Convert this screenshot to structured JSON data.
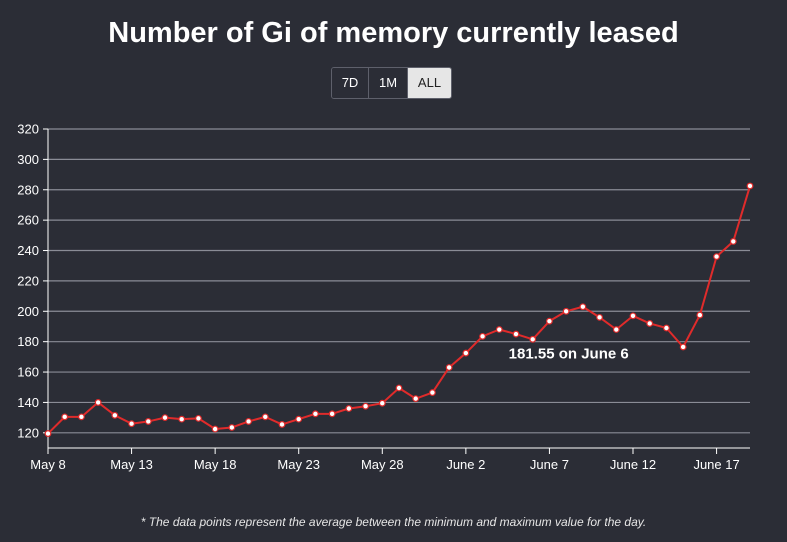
{
  "title": "Number of Gi of memory currently leased",
  "range_buttons": [
    {
      "label": "7D",
      "active": false
    },
    {
      "label": "1M",
      "active": false
    },
    {
      "label": "ALL",
      "active": true
    }
  ],
  "footnote": "* The data points represent the average between the minimum and maximum value for the day.",
  "hover_label": "181.55 on June 6",
  "colors": {
    "background": "#2b2d36",
    "line": "#e02b2b",
    "gridline": "#8a8c96",
    "text": "#ffffff"
  },
  "chart_data": {
    "type": "line",
    "title": "Number of Gi of memory currently leased",
    "xlabel": "",
    "ylabel": "",
    "ylim": [
      110,
      320
    ],
    "yticks": [
      120,
      140,
      160,
      180,
      200,
      220,
      240,
      260,
      280,
      300,
      320
    ],
    "xticks": [
      "May 8",
      "May 13",
      "May 18",
      "May 23",
      "May 28",
      "June 2",
      "June 7",
      "June 12",
      "June 17"
    ],
    "grid": true,
    "x": [
      "May 8",
      "May 9",
      "May 10",
      "May 11",
      "May 12",
      "May 13",
      "May 14",
      "May 15",
      "May 16",
      "May 17",
      "May 18",
      "May 19",
      "May 20",
      "May 21",
      "May 22",
      "May 23",
      "May 24",
      "May 25",
      "May 26",
      "May 27",
      "May 28",
      "May 29",
      "May 30",
      "May 31",
      "June 1",
      "June 2",
      "June 3",
      "June 4",
      "June 5",
      "June 6",
      "June 7",
      "June 8",
      "June 9",
      "June 10",
      "June 11",
      "June 12",
      "June 13",
      "June 14",
      "June 15",
      "June 16",
      "June 17",
      "June 18",
      "June 19"
    ],
    "values": [
      119.5,
      130.5,
      130.5,
      140,
      131.5,
      126,
      127.5,
      130,
      129,
      129.5,
      122.5,
      123.5,
      127.5,
      130.5,
      125.5,
      129,
      132.5,
      132.5,
      136,
      137.5,
      139.5,
      149.5,
      142.5,
      146.5,
      163,
      172.5,
      183.5,
      188,
      185,
      181.55,
      193.5,
      200,
      203,
      196,
      188,
      197,
      192,
      189,
      176.5,
      197.5,
      236,
      246,
      282.5
    ],
    "highlight": {
      "x": "June 6",
      "value": 181.55
    }
  }
}
